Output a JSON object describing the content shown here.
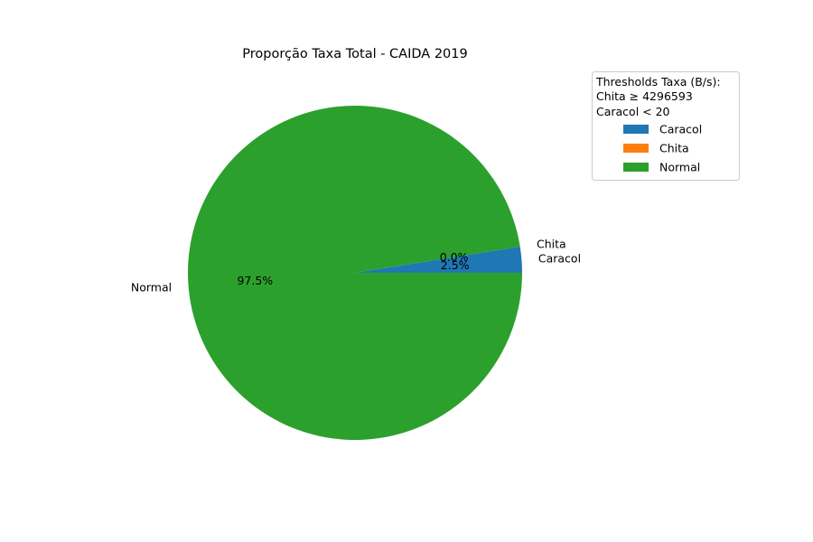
{
  "chart_data": {
    "type": "pie",
    "title": "Proporção Taxa Total - CAIDA 2019",
    "slices": [
      {
        "label": "Caracol",
        "value": 2.5,
        "pct_label": "2.5%",
        "color": "#1f77b4"
      },
      {
        "label": "Chita",
        "value": 0.0,
        "pct_label": "0.0%",
        "color": "#ff7f0e"
      },
      {
        "label": "Normal",
        "value": 97.5,
        "pct_label": "97.5%",
        "color": "#2ca02c"
      }
    ],
    "legend": {
      "title_lines": [
        "Thresholds Taxa (B/s):",
        "Chita ≥ 4296593",
        "Caracol < 20"
      ],
      "entries": [
        "Caracol",
        "Chita",
        "Normal"
      ],
      "placement": "upper-right outside"
    }
  }
}
